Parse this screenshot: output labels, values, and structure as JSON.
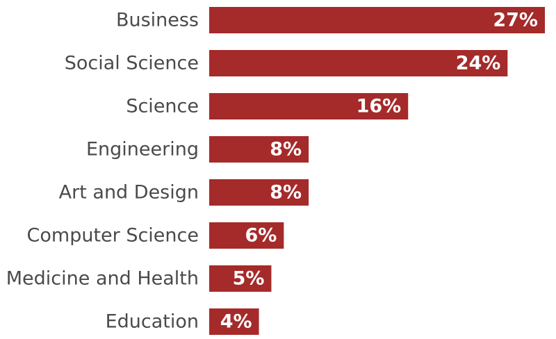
{
  "chart_data": {
    "type": "bar",
    "orientation": "horizontal",
    "categories": [
      "Business",
      "Social Science",
      "Science",
      "Engineering",
      "Art and Design",
      "Computer Science",
      "Medicine and Health",
      "Education"
    ],
    "values": [
      27,
      24,
      16,
      8,
      8,
      6,
      5,
      4
    ],
    "value_labels": [
      "27%",
      "24%",
      "16%",
      "8%",
      "8%",
      "6%",
      "5%",
      "4%"
    ],
    "unit": "%",
    "bar_color": "#a52a2a",
    "label_color": "#4a4a4a",
    "value_label_color": "#ffffff",
    "title": "",
    "xlabel": "",
    "ylabel": "",
    "xlim": [
      0,
      27
    ],
    "grid": false,
    "legend": "none"
  }
}
